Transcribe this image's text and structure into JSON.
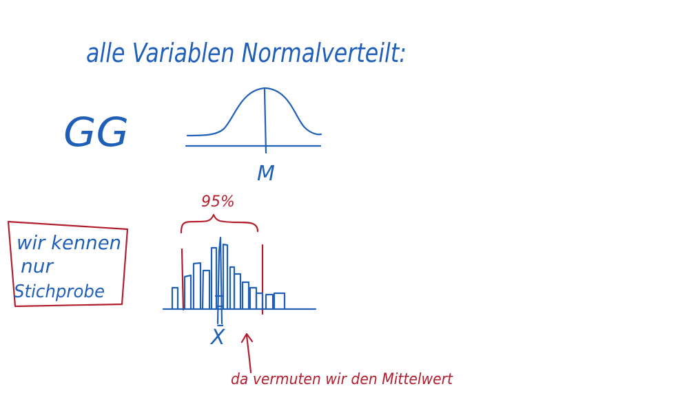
{
  "heading": "alle Variablen Normalverteilt:",
  "population_label": "GG",
  "mean_label": "M",
  "percent_label": "95%",
  "box_note": {
    "line1": "wir kennen",
    "line2": "nur",
    "line3": "Stichprobe"
  },
  "sample_mean_label": "X̄",
  "arrow_note": "da vermuten wir den Mittelwert",
  "colors": {
    "blue_ink": "#1f5fb8",
    "red_ink": "#b21e2e",
    "background": "#ffffff"
  }
}
